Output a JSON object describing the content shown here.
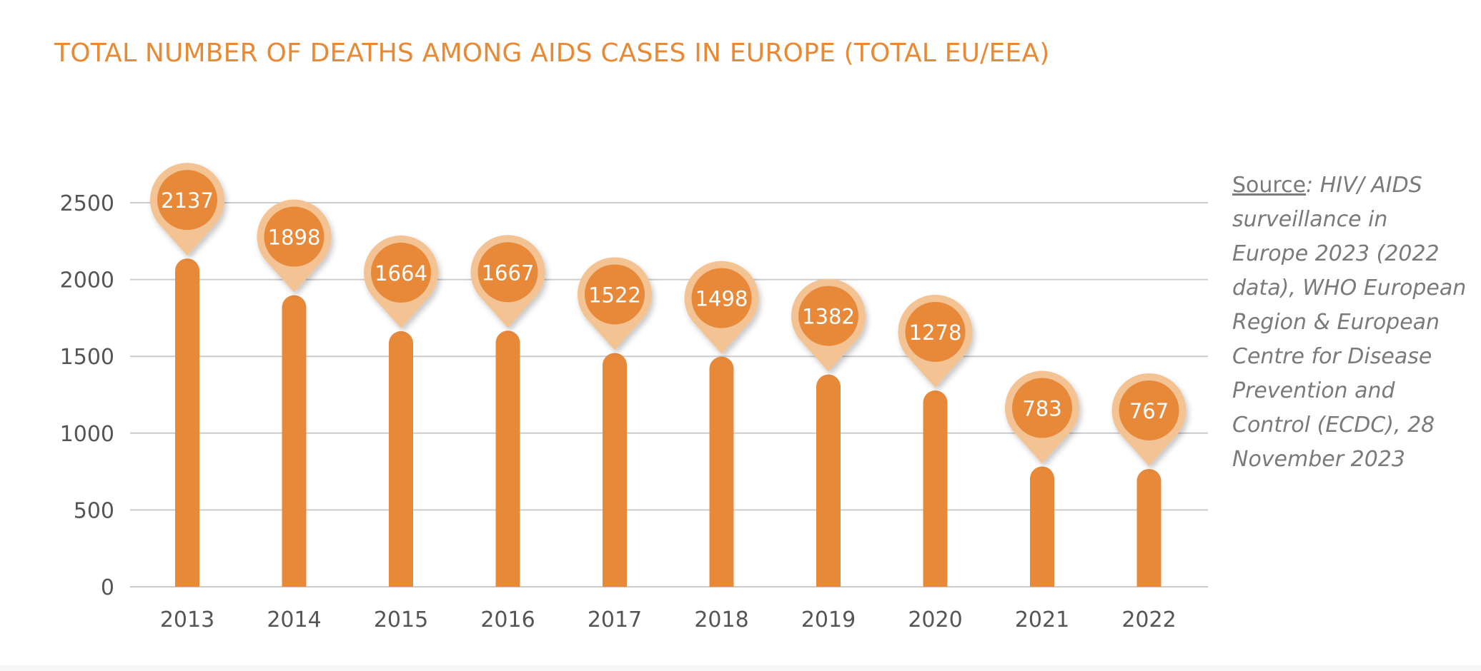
{
  "title": "TOTAL NUMBER OF DEATHS AMONG AIDS CASES IN EUROPE (TOTAL EU/EEA)",
  "source": {
    "label": "Source",
    "text": ": HIV/ AIDS surveillance in Europe 2023 (2022 data), WHO European Region & European Centre for Disease Prevention and Control (ECDC), 28 November 2023"
  },
  "colors": {
    "bar": "#E8893A",
    "pin_outer": "#F3C394",
    "pin_inner": "#E8893A",
    "title": "#E88A35",
    "grid": "#cccccc",
    "axis_text": "#555555"
  },
  "chart_data": {
    "type": "bar",
    "title": "TOTAL NUMBER OF DEATHS AMONG AIDS CASES IN EUROPE (TOTAL EU/EEA)",
    "categories": [
      "2013",
      "2014",
      "2015",
      "2016",
      "2017",
      "2018",
      "2019",
      "2020",
      "2021",
      "2022"
    ],
    "values": [
      2137,
      1898,
      1664,
      1667,
      1522,
      1498,
      1382,
      1278,
      783,
      767
    ],
    "data_labels": [
      "2137",
      "1898",
      "1664",
      "1667",
      "1522",
      "1498",
      "1382",
      "1278",
      "783",
      "767"
    ],
    "y_ticks": [
      "0",
      "500",
      "1000",
      "1500",
      "2000",
      "2500"
    ],
    "ylim": [
      0,
      2500
    ],
    "grid": true,
    "legend": "none"
  }
}
